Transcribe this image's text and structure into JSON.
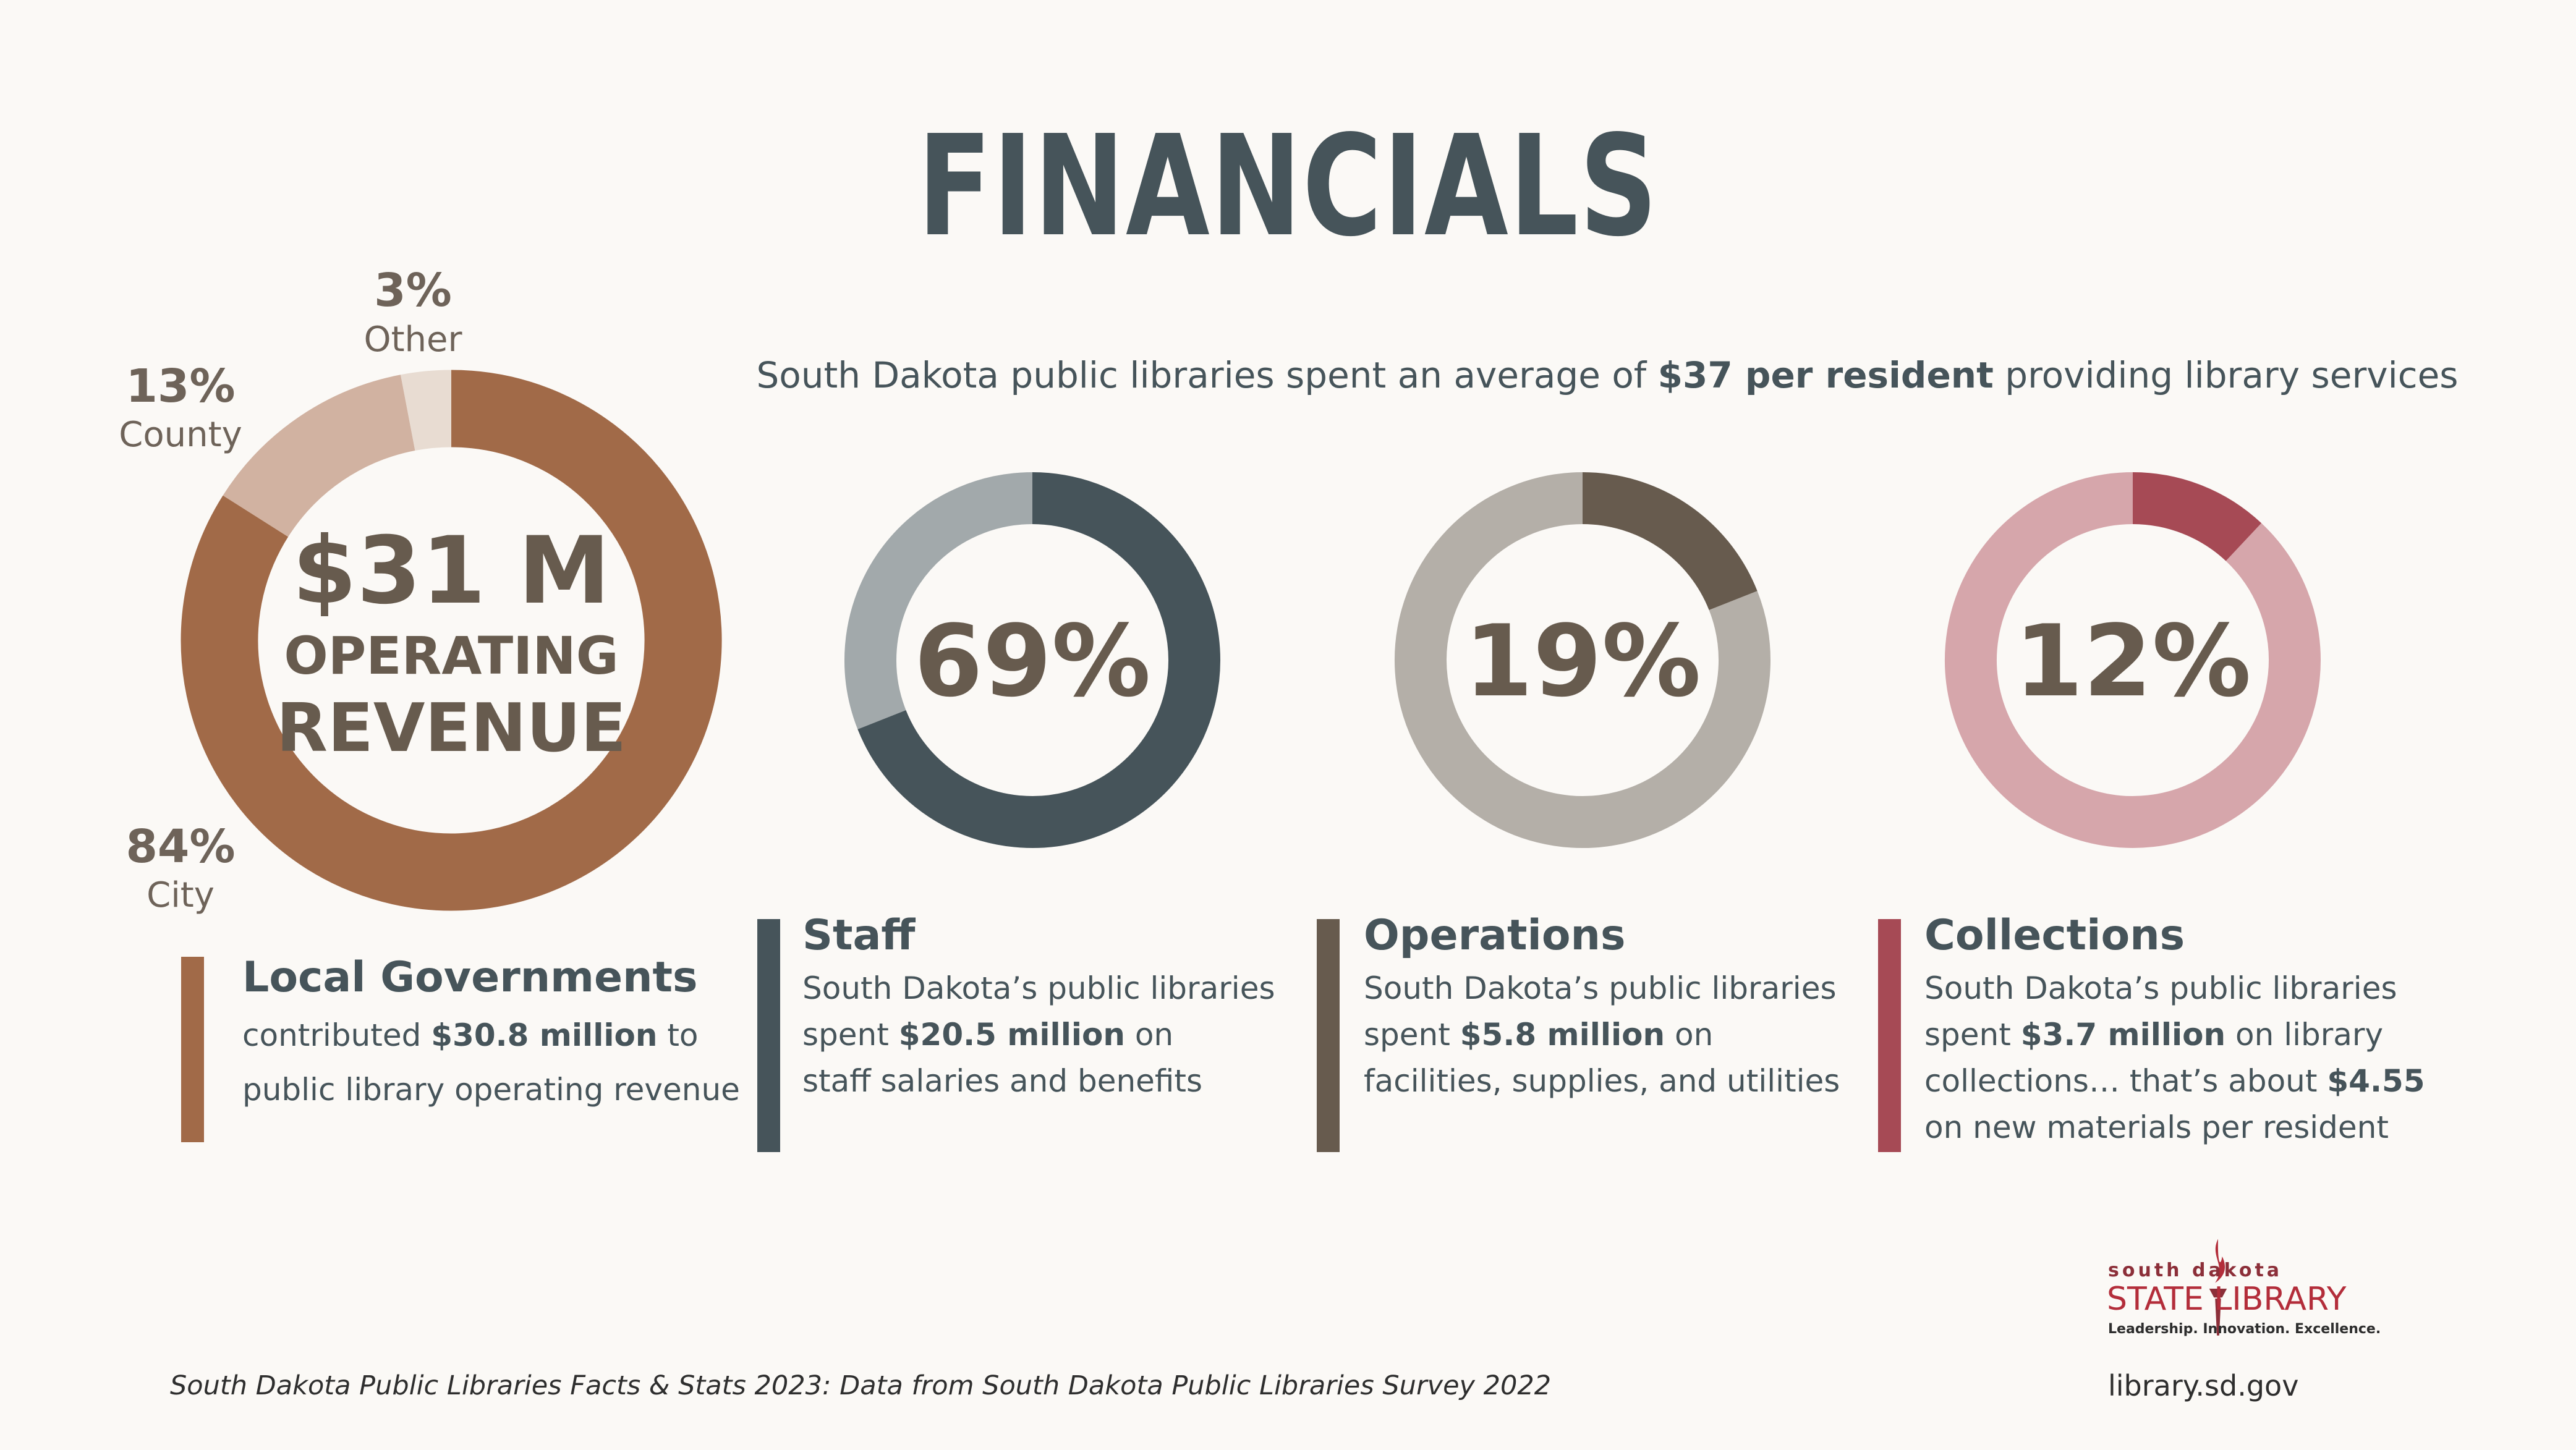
{
  "title": "FINANCIALS",
  "headline": {
    "prefix": "South Dakota public libraries spent an average of ",
    "bold": "$37 per resident",
    "suffix": " providing library services"
  },
  "colors": {
    "city": "#A16A48",
    "county": "#D1B2A1",
    "other": "#E8DCD2",
    "staff_fg": "#46545A",
    "staff_bg": "#A2A9AB",
    "operations_fg": "#675B4E",
    "operations_bg": "#B4AFA8",
    "collections_fg": "#A64A55",
    "collections_bg": "#D6A6AB",
    "text": "#46545A"
  },
  "chart_data": [
    {
      "type": "pie",
      "slices": [
        {
          "label": "City",
          "value": 84,
          "value_label": "84%"
        },
        {
          "label": "County",
          "value": 13,
          "value_label": "13%"
        },
        {
          "label": "Other",
          "value": 3,
          "value_label": "3%"
        }
      ],
      "center": {
        "line1": "$31 M",
        "line2": "OPERATING",
        "line3": "REVENUE"
      }
    },
    {
      "type": "pie",
      "name": "Staff",
      "value": 69,
      "value_label": "69%"
    },
    {
      "type": "pie",
      "name": "Operations",
      "value": 19,
      "value_label": "19%"
    },
    {
      "type": "pie",
      "name": "Collections",
      "value": 12,
      "value_label": "12%"
    }
  ],
  "captions": {
    "local": {
      "title": "Local Governments",
      "l1a": "contributed ",
      "l1b": "$30.8 million",
      "l1c": " to",
      "l2": "public library operating revenue"
    },
    "staff": {
      "title": "Staff",
      "l1": "South Dakota’s public libraries",
      "l2a": "spent ",
      "l2b": "$20.5 million",
      "l2c": " on",
      "l3": "staff salaries and benefits"
    },
    "operations": {
      "title": "Operations",
      "l1": "South Dakota’s public libraries",
      "l2a": "spent ",
      "l2b": "$5.8 million",
      "l2c": " on",
      "l3": "facilities, supplies, and utilities"
    },
    "collections": {
      "title": "Collections",
      "l1": "South Dakota’s public libraries",
      "l2a": "spent ",
      "l2b": "$3.7 million",
      "l2c": " on library",
      "l3a": "collections… that’s about ",
      "l3b": "$4.55",
      "l4": "on new materials per resident"
    }
  },
  "footer": {
    "source": "South Dakota Public Libraries Facts & Stats 2023: Data from South Dakota Public Libraries Survey 2022",
    "url": "library.sd.gov"
  },
  "logo": {
    "small": "south dakota",
    "big": "STATE LIBRARY",
    "tagline": "Leadership. Innovation. Excellence."
  }
}
